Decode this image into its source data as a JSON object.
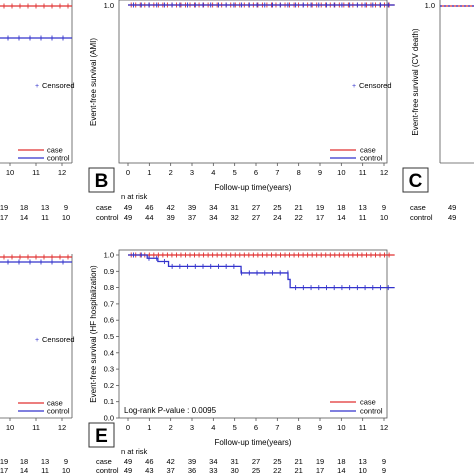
{
  "chart_data": [
    {
      "type": "line",
      "panel": "left-top (cropped)",
      "x_ticks": [
        "10",
        "11",
        "12"
      ],
      "legend": {
        "title": "Censored",
        "entries": [
          "case",
          "control"
        ],
        "position": "bottom-right"
      },
      "series": [
        {
          "name": "case",
          "color": "#e03030",
          "y": [
            1.0
          ]
        },
        {
          "name": "control",
          "color": "#3333cc",
          "y": [
            0.83
          ]
        }
      ],
      "risk_table": {
        "case": [
          "19",
          "18",
          "13",
          "9"
        ],
        "control": [
          "17",
          "14",
          "11",
          "10"
        ]
      }
    },
    {
      "type": "line",
      "panel_letter": "B",
      "ylabel": "Event-free survival (AMI)",
      "xlabel": "Follow-up time(years)",
      "xlim": [
        0,
        12.5
      ],
      "ylim": [
        0,
        1.0
      ],
      "x_ticks": [
        "0",
        "1",
        "2",
        "3",
        "4",
        "5",
        "6",
        "7",
        "8",
        "9",
        "10",
        "11",
        "12"
      ],
      "y_ticks": [
        "1.0"
      ],
      "legend": {
        "censored_label": "Censored",
        "entries": [
          "case",
          "control"
        ],
        "position": "bottom-right"
      },
      "series": [
        {
          "name": "case",
          "color": "#e03030",
          "steps": [
            {
              "x": 0,
              "y": 1.0
            },
            {
              "x": 12.5,
              "y": 1.0
            }
          ]
        },
        {
          "name": "control",
          "color": "#3333cc",
          "steps": [
            {
              "x": 0,
              "y": 1.0
            },
            {
              "x": 12.5,
              "y": 1.0
            }
          ]
        }
      ],
      "risk_table": {
        "title": "n at risk",
        "rows": [
          {
            "label": "case",
            "values": [
              "49",
              "46",
              "42",
              "39",
              "34",
              "31",
              "27",
              "25",
              "21",
              "19",
              "18",
              "13",
              "9"
            ]
          },
          {
            "label": "control",
            "values": [
              "49",
              "44",
              "39",
              "37",
              "34",
              "32",
              "27",
              "24",
              "22",
              "17",
              "14",
              "11",
              "10"
            ]
          }
        ]
      }
    },
    {
      "type": "line",
      "panel_letter": "C",
      "ylabel": "Event-free survival (CV death)",
      "y_ticks": [
        "1.0"
      ],
      "risk_table": {
        "rows": [
          {
            "label": "case",
            "values": [
              "49"
            ]
          },
          {
            "label": "control",
            "values": [
              "49"
            ]
          }
        ]
      }
    },
    {
      "type": "line",
      "panel": "left-bottom (cropped)",
      "x_ticks": [
        "10",
        "11",
        "12"
      ],
      "legend": {
        "censored_label": "Censored",
        "entries": [
          "case",
          "control"
        ],
        "position": "bottom-right"
      },
      "series": [
        {
          "name": "case",
          "color": "#e03030",
          "y": [
            1.0
          ]
        },
        {
          "name": "control",
          "color": "#3333cc",
          "y": [
            0.975
          ]
        }
      ],
      "risk_table": {
        "case": [
          "19",
          "18",
          "13",
          "9"
        ],
        "control": [
          "17",
          "14",
          "11",
          "10"
        ]
      }
    },
    {
      "type": "line",
      "panel_letter": "E",
      "ylabel": "Event-free survival (HF hospitalization)",
      "xlabel": "Follow-up time(years)",
      "xlim": [
        0,
        12.5
      ],
      "ylim": [
        0.0,
        1.0
      ],
      "x_ticks": [
        "0",
        "1",
        "2",
        "3",
        "4",
        "5",
        "6",
        "7",
        "8",
        "9",
        "10",
        "11",
        "12"
      ],
      "y_ticks": [
        "0.0",
        "0.1",
        "0.2",
        "0.3",
        "0.4",
        "0.5",
        "0.6",
        "0.7",
        "0.8",
        "0.9",
        "1.0"
      ],
      "annotation": "Log-rank P-value : 0.0095",
      "legend": {
        "entries": [
          "case",
          "control"
        ],
        "position": "bottom-right"
      },
      "series": [
        {
          "name": "case",
          "color": "#e03030",
          "steps": [
            {
              "x": 0,
              "y": 1.0
            },
            {
              "x": 12.5,
              "y": 1.0
            }
          ]
        },
        {
          "name": "control",
          "color": "#3333cc",
          "steps": [
            {
              "x": 0,
              "y": 1.0
            },
            {
              "x": 0.9,
              "y": 0.98
            },
            {
              "x": 1.4,
              "y": 0.96
            },
            {
              "x": 1.9,
              "y": 0.93
            },
            {
              "x": 5.3,
              "y": 0.89
            },
            {
              "x": 7.5,
              "y": 0.85
            },
            {
              "x": 7.6,
              "y": 0.8
            },
            {
              "x": 12.5,
              "y": 0.8
            }
          ]
        }
      ],
      "risk_table": {
        "title": "n at risk",
        "rows": [
          {
            "label": "case",
            "values": [
              "49",
              "46",
              "42",
              "39",
              "34",
              "31",
              "27",
              "25",
              "21",
              "19",
              "18",
              "13",
              "9"
            ]
          },
          {
            "label": "control",
            "values": [
              "49",
              "43",
              "37",
              "36",
              "33",
              "30",
              "25",
              "22",
              "21",
              "17",
              "14",
              "10",
              "9"
            ]
          }
        ]
      }
    }
  ],
  "colors": {
    "case": "#e03030",
    "control": "#3333cc",
    "axis": "#555555",
    "text": "#222222"
  }
}
